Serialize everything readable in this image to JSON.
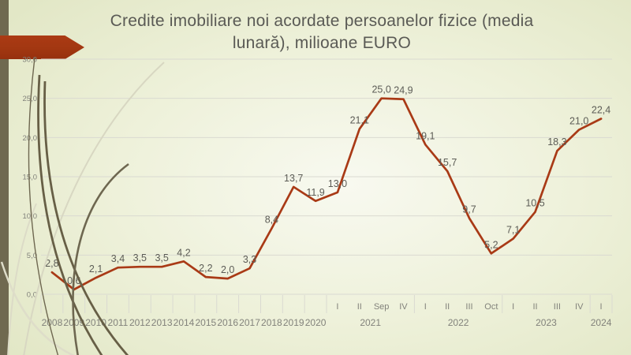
{
  "slide": {
    "title_line1": "Credite imobiliare noi acordate persoanelor fizice (media",
    "title_line2": "lunară), milioane EURO"
  },
  "theme": {
    "background_outer": "#e2e7c6",
    "background_inner": "#f8f9f0",
    "accent_red": "#a23711",
    "accent_olive": "#6f6950",
    "title_color": "#5a5a55",
    "grid_color": "#dadad1",
    "axis_text_color": "#82827b",
    "data_label_color": "#5c5c56",
    "swoosh_dark": "#675f46",
    "swoosh_pale": "#d8d7c2"
  },
  "chart_data": {
    "type": "line",
    "title": "Credite imobiliare noi acordate persoanelor fizice (media lunară), milioane EURO",
    "xlabel": "",
    "ylabel": "milioane EURO",
    "ylim": [
      0,
      30
    ],
    "yticks": [
      0,
      5,
      10,
      15,
      20,
      25,
      30
    ],
    "ytick_labels": [
      "0,0",
      "5,0",
      "10,0",
      "15,0",
      "20,0",
      "25,0",
      "30,0"
    ],
    "grid": true,
    "legend": "none",
    "line_color": "#a93a16",
    "year_groups": [
      {
        "label": "2008",
        "count": 1
      },
      {
        "label": "2009",
        "count": 1
      },
      {
        "label": "2010",
        "count": 1
      },
      {
        "label": "2011",
        "count": 1
      },
      {
        "label": "2012",
        "count": 1
      },
      {
        "label": "2013",
        "count": 1
      },
      {
        "label": "2014",
        "count": 1
      },
      {
        "label": "2015",
        "count": 1
      },
      {
        "label": "2016",
        "count": 1
      },
      {
        "label": "2017",
        "count": 1
      },
      {
        "label": "2018",
        "count": 1
      },
      {
        "label": "2019",
        "count": 1
      },
      {
        "label": "2020",
        "count": 1
      },
      {
        "label": "2021",
        "count": 4
      },
      {
        "label": "2022",
        "count": 4
      },
      {
        "label": "2023",
        "count": 4
      },
      {
        "label": "2024",
        "count": 1
      }
    ],
    "points": [
      {
        "year": "2008",
        "sub": "",
        "value": 2.8,
        "label": "2,8"
      },
      {
        "year": "2009",
        "sub": "",
        "value": 0.6,
        "label": "0,6"
      },
      {
        "year": "2010",
        "sub": "",
        "value": 2.1,
        "label": "2,1"
      },
      {
        "year": "2011",
        "sub": "",
        "value": 3.4,
        "label": "3,4"
      },
      {
        "year": "2012",
        "sub": "",
        "value": 3.5,
        "label": "3,5"
      },
      {
        "year": "2013",
        "sub": "",
        "value": 3.5,
        "label": "3,5"
      },
      {
        "year": "2014",
        "sub": "",
        "value": 4.2,
        "label": "4,2"
      },
      {
        "year": "2015",
        "sub": "",
        "value": 2.2,
        "label": "2,2"
      },
      {
        "year": "2016",
        "sub": "",
        "value": 2.0,
        "label": "2,0"
      },
      {
        "year": "2017",
        "sub": "",
        "value": 3.3,
        "label": "3,3"
      },
      {
        "year": "2018",
        "sub": "",
        "value": 8.4,
        "label": "8,4"
      },
      {
        "year": "2019",
        "sub": "",
        "value": 13.7,
        "label": "13,7"
      },
      {
        "year": "2020",
        "sub": "",
        "value": 11.9,
        "label": "11,9"
      },
      {
        "year": "2021",
        "sub": "I",
        "value": 13.0,
        "label": "13,0"
      },
      {
        "year": "2021",
        "sub": "II",
        "value": 21.1,
        "label": "21,1"
      },
      {
        "year": "2021",
        "sub": "Sep",
        "value": 25.0,
        "label": "25,0"
      },
      {
        "year": "2021",
        "sub": "IV",
        "value": 24.9,
        "label": "24,9"
      },
      {
        "year": "2022",
        "sub": "I",
        "value": 19.1,
        "label": "19,1"
      },
      {
        "year": "2022",
        "sub": "II",
        "value": 15.7,
        "label": "15,7"
      },
      {
        "year": "2022",
        "sub": "III",
        "value": 9.7,
        "label": "9,7"
      },
      {
        "year": "2022",
        "sub": "Oct",
        "value": 5.2,
        "label": "5,2"
      },
      {
        "year": "2023",
        "sub": "I",
        "value": 7.1,
        "label": "7,1"
      },
      {
        "year": "2023",
        "sub": "II",
        "value": 10.5,
        "label": "10,5"
      },
      {
        "year": "2023",
        "sub": "III",
        "value": 18.3,
        "label": "18,3"
      },
      {
        "year": "2023",
        "sub": "IV",
        "value": 21.0,
        "label": "21,0"
      },
      {
        "year": "2024",
        "sub": "I",
        "value": 22.4,
        "label": "22,4"
      }
    ]
  }
}
